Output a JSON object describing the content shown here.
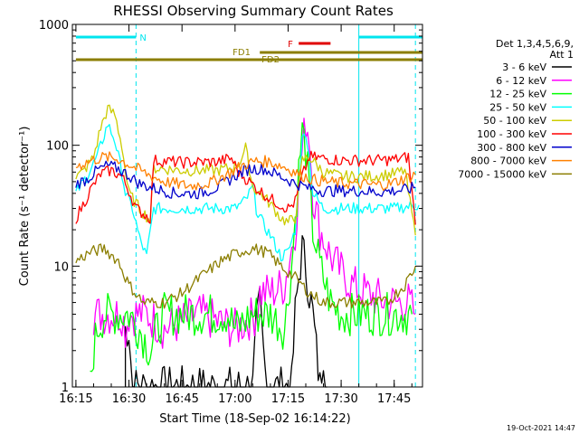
{
  "chart_data": {
    "type": "line",
    "title": "RHESSI Observing Summary Count Rates",
    "xlabel": "Start Time (18-Sep-02 16:14:22)",
    "ylabel": "Count Rate (s⁻¹ detector⁻¹)",
    "yscale": "log",
    "ylim": [
      1,
      1000
    ],
    "xlim": [
      "16:14",
      "17:53"
    ],
    "xticks": [
      "16:15",
      "16:30",
      "16:45",
      "17:00",
      "17:15",
      "17:30",
      "17:45"
    ],
    "yticks": [
      "1",
      "10",
      "100",
      "1000"
    ],
    "legend_title": [
      "Det 1,3,4,5,6,9,",
      "Att 1"
    ],
    "legend_position": "right",
    "footer": "19-Oct-2021 14:47",
    "flags": [
      {
        "label": "N",
        "color": "#00e5ee",
        "segments": [
          [
            "16:15",
            "16:32"
          ],
          [
            "17:35",
            "17:53"
          ]
        ]
      },
      {
        "label": "F",
        "color": "#e00000",
        "segments": [
          [
            "17:18",
            "17:27"
          ]
        ]
      },
      {
        "label": "FD1",
        "color": "#8b7e00",
        "segments": [
          [
            "17:07",
            "17:53"
          ]
        ]
      },
      {
        "label": "FD2",
        "color": "#8b7e00",
        "segments": [
          [
            "16:15",
            "17:53"
          ]
        ]
      }
    ],
    "vlines": {
      "color": "#00e5ee",
      "solid": [
        "16:14",
        "17:35"
      ],
      "dashed": [
        "16:32",
        "17:51"
      ]
    },
    "series": [
      {
        "name": "3 - 6 keV",
        "color": "#000000",
        "points": [
          [
            "16:29",
            1
          ],
          [
            "16:29",
            3
          ],
          [
            "16:30",
            3
          ],
          [
            "16:31",
            1
          ],
          [
            "17:05",
            1
          ],
          [
            "17:06",
            3
          ],
          [
            "17:07",
            5
          ],
          [
            "17:08",
            2
          ],
          [
            "17:09",
            1
          ],
          [
            "17:16",
            1
          ],
          [
            "17:17",
            4
          ],
          [
            "17:18",
            8
          ],
          [
            "17:19",
            14
          ],
          [
            "17:20",
            10
          ],
          [
            "17:21",
            6
          ],
          [
            "17:22",
            4
          ],
          [
            "17:23",
            2
          ],
          [
            "17:24",
            1
          ],
          [
            "17:25",
            2
          ],
          [
            "17:26",
            1
          ]
        ]
      },
      {
        "name": "6 - 12 keV",
        "color": "#ff00ff",
        "points": [
          [
            "16:20",
            4
          ],
          [
            "16:28",
            4
          ],
          [
            "16:29",
            3
          ],
          [
            "16:30",
            4
          ],
          [
            "16:35",
            4
          ],
          [
            "16:40",
            3
          ],
          [
            "16:50",
            4
          ],
          [
            "17:00",
            3
          ],
          [
            "17:06",
            4
          ],
          [
            "17:07",
            6
          ],
          [
            "17:10",
            6
          ],
          [
            "17:14",
            7
          ],
          [
            "17:17",
            20
          ],
          [
            "17:19",
            90
          ],
          [
            "17:20",
            160
          ],
          [
            "17:21",
            120
          ],
          [
            "17:22",
            40
          ],
          [
            "17:24",
            20
          ],
          [
            "17:27",
            12
          ],
          [
            "17:30",
            9
          ],
          [
            "17:33",
            7
          ],
          [
            "17:37",
            6
          ],
          [
            "17:43",
            5
          ],
          [
            "17:49",
            5
          ],
          [
            "17:51",
            4
          ]
        ]
      },
      {
        "name": "12 - 25 keV",
        "color": "#00ff00",
        "points": [
          [
            "16:19",
            1
          ],
          [
            "16:20",
            2
          ],
          [
            "16:21",
            3
          ],
          [
            "16:23",
            4
          ],
          [
            "16:30",
            4
          ],
          [
            "16:33",
            3
          ],
          [
            "16:36",
            2
          ],
          [
            "16:38",
            3
          ],
          [
            "16:40",
            4
          ],
          [
            "16:50",
            4
          ],
          [
            "16:58",
            4
          ],
          [
            "17:00",
            3
          ],
          [
            "17:05",
            4
          ],
          [
            "17:10",
            4
          ],
          [
            "17:14",
            3
          ],
          [
            "17:16",
            10
          ],
          [
            "17:18",
            60
          ],
          [
            "17:19",
            130
          ],
          [
            "17:20",
            90
          ],
          [
            "17:21",
            40
          ],
          [
            "17:22",
            20
          ],
          [
            "17:24",
            10
          ],
          [
            "17:27",
            5
          ],
          [
            "17:30",
            4
          ],
          [
            "17:40",
            4
          ],
          [
            "17:50",
            4
          ]
        ]
      },
      {
        "name": "25 - 50 keV",
        "color": "#00ffff",
        "points": [
          [
            "16:15",
            40
          ],
          [
            "16:18",
            55
          ],
          [
            "16:21",
            80
          ],
          [
            "16:24",
            150
          ],
          [
            "16:26",
            110
          ],
          [
            "16:28",
            60
          ],
          [
            "16:29",
            40
          ],
          [
            "16:31",
            30
          ],
          [
            "16:33",
            17
          ],
          [
            "16:35",
            12
          ],
          [
            "16:37",
            30
          ],
          [
            "16:45",
            30
          ],
          [
            "16:55",
            30
          ],
          [
            "17:00",
            30
          ],
          [
            "17:03",
            35
          ],
          [
            "17:05",
            45
          ],
          [
            "17:06",
            30
          ],
          [
            "17:08",
            22
          ],
          [
            "17:10",
            18
          ],
          [
            "17:13",
            12
          ],
          [
            "17:15",
            13
          ],
          [
            "17:17",
            20
          ],
          [
            "17:19",
            110
          ],
          [
            "17:20",
            130
          ],
          [
            "17:21",
            80
          ],
          [
            "17:22",
            40
          ],
          [
            "17:25",
            30
          ],
          [
            "17:35",
            30
          ],
          [
            "17:45",
            30
          ],
          [
            "17:52",
            32
          ]
        ]
      },
      {
        "name": "50 - 100 keV",
        "color": "#cccc00",
        "points": [
          [
            "16:15",
            55
          ],
          [
            "16:17",
            60
          ],
          [
            "16:20",
            80
          ],
          [
            "16:22",
            140
          ],
          [
            "16:24",
            200
          ],
          [
            "16:26",
            180
          ],
          [
            "16:28",
            100
          ],
          [
            "16:29",
            60
          ],
          [
            "16:30",
            40
          ],
          [
            "16:33",
            30
          ],
          [
            "16:36",
            24
          ],
          [
            "16:37",
            65
          ],
          [
            "16:45",
            62
          ],
          [
            "16:55",
            62
          ],
          [
            "16:59",
            65
          ],
          [
            "17:01",
            70
          ],
          [
            "17:03",
            95
          ],
          [
            "17:05",
            45
          ],
          [
            "17:08",
            38
          ],
          [
            "17:11",
            30
          ],
          [
            "17:13",
            25
          ],
          [
            "17:15",
            23
          ],
          [
            "17:17",
            25
          ],
          [
            "17:19",
            75
          ],
          [
            "17:21",
            80
          ],
          [
            "17:25",
            60
          ],
          [
            "17:30",
            55
          ],
          [
            "17:35",
            55
          ],
          [
            "17:40",
            56
          ],
          [
            "17:45",
            58
          ],
          [
            "17:48",
            62
          ],
          [
            "17:51",
            18
          ]
        ]
      },
      {
        "name": "100 - 300 keV",
        "color": "#ff0000",
        "points": [
          [
            "16:15",
            25
          ],
          [
            "16:17",
            32
          ],
          [
            "16:19",
            42
          ],
          [
            "16:22",
            58
          ],
          [
            "16:25",
            62
          ],
          [
            "16:28",
            55
          ],
          [
            "16:30",
            42
          ],
          [
            "16:32",
            30
          ],
          [
            "16:35",
            26
          ],
          [
            "16:36",
            25
          ],
          [
            "16:37",
            75
          ],
          [
            "16:45",
            72
          ],
          [
            "16:55",
            73
          ],
          [
            "16:59",
            78
          ],
          [
            "17:01",
            60
          ],
          [
            "17:04",
            50
          ],
          [
            "17:07",
            42
          ],
          [
            "17:10",
            36
          ],
          [
            "17:13",
            32
          ],
          [
            "17:15",
            30
          ],
          [
            "17:17",
            34
          ],
          [
            "17:19",
            55
          ],
          [
            "17:21",
            80
          ],
          [
            "17:25",
            78
          ],
          [
            "17:30",
            75
          ],
          [
            "17:35",
            75
          ],
          [
            "17:40",
            75
          ],
          [
            "17:45",
            76
          ],
          [
            "17:49",
            80
          ],
          [
            "17:51",
            22
          ]
        ]
      },
      {
        "name": "300 - 800 keV",
        "color": "#0000cc",
        "points": [
          [
            "16:15",
            48
          ],
          [
            "16:18",
            52
          ],
          [
            "16:21",
            62
          ],
          [
            "16:24",
            68
          ],
          [
            "16:27",
            64
          ],
          [
            "16:30",
            56
          ],
          [
            "16:33",
            48
          ],
          [
            "16:37",
            44
          ],
          [
            "16:43",
            40
          ],
          [
            "16:50",
            40
          ],
          [
            "16:56",
            46
          ],
          [
            "17:00",
            56
          ],
          [
            "17:04",
            64
          ],
          [
            "17:08",
            64
          ],
          [
            "17:12",
            57
          ],
          [
            "17:16",
            50
          ],
          [
            "17:20",
            45
          ],
          [
            "17:25",
            42
          ],
          [
            "17:30",
            42
          ],
          [
            "17:35",
            42
          ],
          [
            "17:40",
            41
          ],
          [
            "17:45",
            42
          ],
          [
            "17:49",
            43
          ],
          [
            "17:51",
            45
          ]
        ]
      },
      {
        "name": "800 - 7000 keV",
        "color": "#ff8000",
        "points": [
          [
            "16:15",
            67
          ],
          [
            "16:19",
            74
          ],
          [
            "16:23",
            80
          ],
          [
            "16:27",
            77
          ],
          [
            "16:31",
            67
          ],
          [
            "16:35",
            58
          ],
          [
            "16:40",
            50
          ],
          [
            "16:47",
            46
          ],
          [
            "16:53",
            49
          ],
          [
            "16:58",
            58
          ],
          [
            "17:02",
            68
          ],
          [
            "17:06",
            74
          ],
          [
            "17:10",
            73
          ],
          [
            "17:14",
            66
          ],
          [
            "17:18",
            58
          ],
          [
            "17:22",
            52
          ],
          [
            "17:28",
            49
          ],
          [
            "17:34",
            48
          ],
          [
            "17:40",
            47
          ],
          [
            "17:44",
            48
          ],
          [
            "17:47",
            52
          ],
          [
            "17:51",
            57
          ]
        ]
      },
      {
        "name": "7000 - 15000 keV",
        "color": "#8b7e00",
        "points": [
          [
            "16:15",
            11
          ],
          [
            "16:19",
            13
          ],
          [
            "16:23",
            14
          ],
          [
            "16:27",
            11
          ],
          [
            "16:30",
            7
          ],
          [
            "16:34",
            5
          ],
          [
            "16:40",
            5
          ],
          [
            "16:45",
            6
          ],
          [
            "16:50",
            8
          ],
          [
            "16:56",
            11
          ],
          [
            "17:01",
            13
          ],
          [
            "17:05",
            14
          ],
          [
            "17:09",
            13
          ],
          [
            "17:13",
            10
          ],
          [
            "17:17",
            8
          ],
          [
            "17:21",
            6
          ],
          [
            "17:25",
            5
          ],
          [
            "17:35",
            5
          ],
          [
            "17:43",
            5
          ],
          [
            "17:48",
            7
          ],
          [
            "17:51",
            10
          ]
        ]
      }
    ]
  }
}
